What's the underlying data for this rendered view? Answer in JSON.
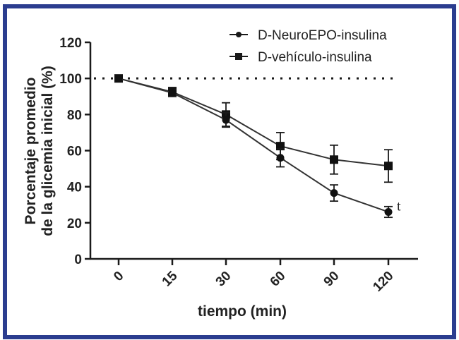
{
  "chart_data": {
    "type": "line",
    "title": "",
    "xlabel": "tiempo (min)",
    "ylabel": "Porcentaje promedio de la glicemia inicial (%)",
    "ylabel_lines": [
      "Porcentaje promedio",
      "de la glicemia inicial (%)"
    ],
    "categories": [
      "0",
      "15",
      "30",
      "60",
      "90",
      "120"
    ],
    "y_ticks": [
      "0",
      "20",
      "40",
      "60",
      "80",
      "100",
      "120"
    ],
    "ylim": [
      0,
      120
    ],
    "grid": false,
    "legend_position": "top-right",
    "reference_line": {
      "y": 100,
      "style": "dotted"
    },
    "series": [
      {
        "name": "D-NeuroEPO-insulina",
        "marker": "circle",
        "values": [
          100,
          92,
          77,
          56,
          36.5,
          26
        ],
        "errors": [
          0,
          2,
          4,
          5,
          4.5,
          3
        ]
      },
      {
        "name": "D-vehículo-insulina",
        "marker": "square",
        "values": [
          100,
          92.5,
          80,
          62.5,
          55,
          51.5
        ],
        "errors": [
          0,
          2.5,
          6.5,
          7.5,
          8,
          9
        ]
      }
    ],
    "annotations": [
      {
        "text": "t",
        "x": "120",
        "series": "D-NeuroEPO-insulina"
      }
    ]
  },
  "colors": {
    "frame": "#2b3d8f",
    "ink": "#1a1a1a"
  }
}
